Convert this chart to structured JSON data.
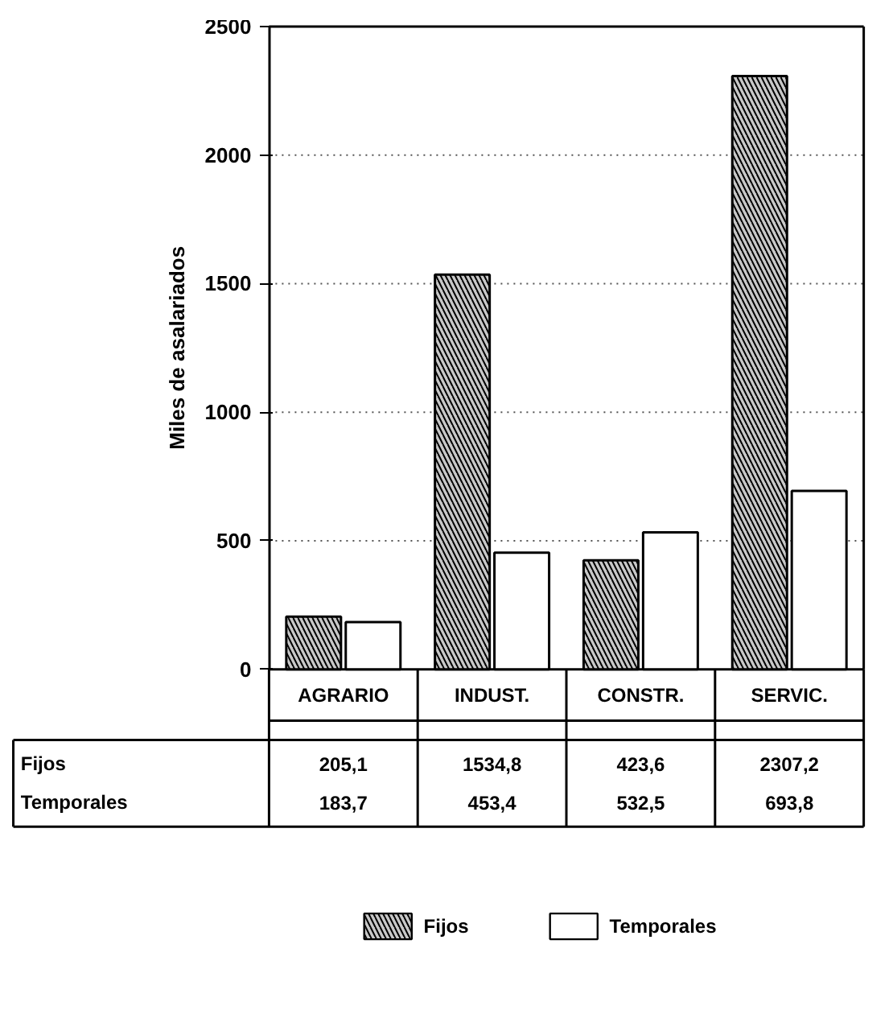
{
  "chart_data": {
    "type": "bar",
    "ylabel": "Miles de asalariados",
    "categories": [
      "AGRARIO",
      "INDUST.",
      "CONSTR.",
      "SERVIC."
    ],
    "series": [
      {
        "name": "Fijos",
        "color": "#c8c8c8",
        "values": [
          205.1,
          1534.8,
          423.6,
          2307.2
        ],
        "value_labels": [
          "205,1",
          "1534,8",
          "423,6",
          "2307,2"
        ]
      },
      {
        "name": "Temporales",
        "color": "#ffffff",
        "values": [
          183.7,
          453.4,
          532.5,
          693.8
        ],
        "value_labels": [
          "183,7",
          "453,4",
          "532,5",
          "693,8"
        ]
      }
    ],
    "ylim": [
      0,
      2500
    ],
    "yticks": [
      0,
      500,
      1000,
      1500,
      2000,
      2500
    ],
    "grid": "y",
    "legend": "bottom"
  }
}
